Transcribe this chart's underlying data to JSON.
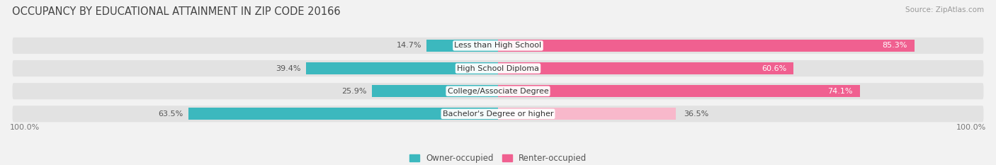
{
  "title": "OCCUPANCY BY EDUCATIONAL ATTAINMENT IN ZIP CODE 20166",
  "source": "Source: ZipAtlas.com",
  "categories": [
    "Less than High School",
    "High School Diploma",
    "College/Associate Degree",
    "Bachelor's Degree or higher"
  ],
  "owner_pct": [
    14.7,
    39.4,
    25.9,
    63.5
  ],
  "renter_pct": [
    85.3,
    60.6,
    74.1,
    36.5
  ],
  "owner_color": "#3cb8be",
  "renter_color": "#f06090",
  "renter_light_color": "#f8b8cb",
  "bg_color": "#f2f2f2",
  "row_bg_color": "#e2e2e2",
  "title_fontsize": 10.5,
  "label_fontsize": 8.0,
  "axis_label_fontsize": 8,
  "legend_fontsize": 8.5,
  "x_left_label": "100.0%",
  "x_right_label": "100.0%"
}
